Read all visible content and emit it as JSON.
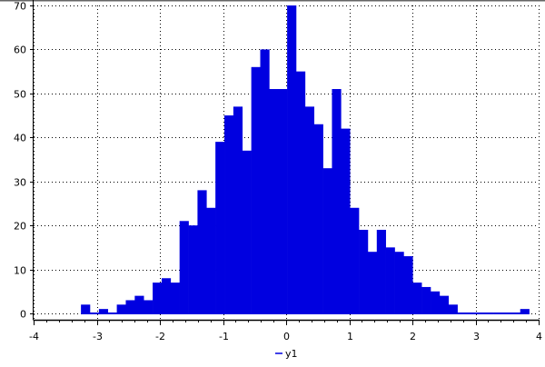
{
  "chart_data": {
    "type": "bar",
    "subtype": "histogram",
    "title": "",
    "xlabel": "",
    "ylabel": "",
    "xlim": [
      -4,
      4
    ],
    "ylim": [
      0,
      70
    ],
    "xticks": [
      -4,
      -3,
      -2,
      -1,
      0,
      1,
      2,
      3,
      4
    ],
    "yticks": [
      0,
      10,
      20,
      30,
      40,
      50,
      60,
      70
    ],
    "grid": true,
    "legend_placement": "bottom-center",
    "bin_start": -3.25,
    "bin_width": 0.142,
    "series": [
      {
        "name": "y1",
        "color": "#0000e0",
        "values": [
          2,
          0,
          1,
          0,
          2,
          3,
          4,
          3,
          7,
          8,
          7,
          21,
          20,
          28,
          24,
          39,
          45,
          47,
          37,
          56,
          60,
          51,
          51,
          70,
          55,
          47,
          43,
          33,
          51,
          42,
          24,
          19,
          14,
          19,
          15,
          14,
          13,
          7,
          6,
          5,
          4,
          2,
          0,
          0,
          0,
          0,
          0,
          0,
          0,
          1
        ]
      }
    ]
  }
}
